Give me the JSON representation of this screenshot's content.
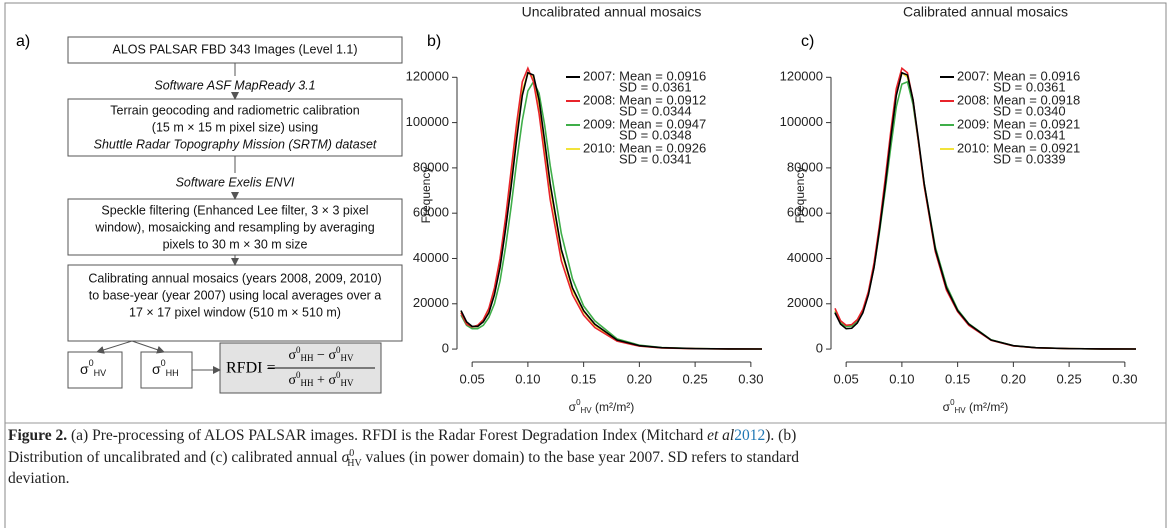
{
  "flowchart": {
    "panel_label": "a)",
    "boxes": [
      [
        "ALOS PALSAR FBD 343 Images (Level 1.1)"
      ],
      [
        "Terrain geocoding and radiometric calibration",
        "(15 m × 15 m pixel size) using",
        "Shuttle Radar Topography Mission (SRTM) dataset"
      ],
      [
        "Speckle filtering (Enhanced Lee filter, 3 × 3 pixel",
        "window), mosaicking and resampling by averaging",
        "pixels to 30 m × 30 m size"
      ],
      [
        "Calibrating annual mosaics (years 2008, 2009, 2010)",
        "to base-year (year 2007) using local averages over a",
        "17 × 17 pixel window (510 m × 510 m)"
      ]
    ],
    "software": [
      "Software ASF MapReady 3.1",
      "Software Exelis ENVI"
    ],
    "hv": [
      "σ",
      "0",
      "HV"
    ],
    "hh": [
      "σ",
      "0",
      "HH"
    ],
    "rfdi": {
      "lhs": "RFDI =",
      "num": [
        "σ",
        "0",
        "HH",
        " − ",
        "σ",
        "0",
        "HV"
      ],
      "den": [
        "σ",
        "0",
        "HH",
        " + ",
        "σ",
        "0",
        "HV"
      ]
    }
  },
  "chart_data": [
    {
      "type": "line",
      "panel_label": "b)",
      "title": "Uncalibrated annual mosaics",
      "ylabel": "Frequency",
      "xlabel": [
        "σ",
        "0",
        "HV",
        " (m²/m²)"
      ],
      "x": [
        0.04,
        0.045,
        0.05,
        0.055,
        0.06,
        0.065,
        0.07,
        0.075,
        0.08,
        0.085,
        0.09,
        0.095,
        0.1,
        0.105,
        0.11,
        0.115,
        0.12,
        0.13,
        0.14,
        0.15,
        0.16,
        0.18,
        0.2,
        0.22,
        0.25,
        0.28,
        0.31
      ],
      "xlim": [
        0.04,
        0.31
      ],
      "xticks": [
        0.05,
        {
          "value": 0.1,
          "label": "0.10"
        },
        0.15,
        {
          "value": 0.2,
          "label": "0.20"
        },
        0.25,
        {
          "value": 0.3,
          "label": "0.30"
        }
      ],
      "ylim": [
        -3500,
        140000
      ],
      "yticks": [
        0,
        20000,
        40000,
        60000,
        80000,
        100000,
        120000
      ],
      "series": [
        {
          "name": "2007: Mean = 0.0916",
          "sd": "SD = 0.0361",
          "color": "#000000",
          "values": [
            17000,
            12000,
            10000,
            10000,
            12000,
            16000,
            24000,
            36000,
            53000,
            72000,
            93000,
            112000,
            122000,
            121000,
            110000,
            92000,
            73000,
            44000,
            27000,
            17000,
            11000,
            4000,
            1500,
            600,
            200,
            80,
            30
          ]
        },
        {
          "name": "2008: Mean = 0.0912",
          "sd": "SD = 0.0344",
          "color": "#e8242b",
          "values": [
            16000,
            11000,
            9800,
            10500,
            13000,
            18000,
            27000,
            40000,
            58000,
            79000,
            100000,
            118000,
            124000,
            118000,
            104000,
            85000,
            66000,
            39000,
            24000,
            15000,
            9500,
            3500,
            1300,
            500,
            180,
            70,
            30
          ]
        },
        {
          "name": "2009: Mean = 0.0947",
          "sd": "SD = 0.0348",
          "color": "#3fae49",
          "values": [
            15000,
            10500,
            9000,
            9000,
            10500,
            14000,
            20000,
            30000,
            45000,
            63000,
            83000,
            101000,
            114000,
            118000,
            113000,
            99000,
            81000,
            51000,
            31000,
            19000,
            12500,
            4500,
            1700,
            700,
            250,
            90,
            30
          ]
        },
        {
          "name": "2010: Mean = 0.0926",
          "sd": "SD = 0.0341",
          "color": "#f2e33a",
          "values": [
            16500,
            11500,
            9800,
            10000,
            12200,
            16500,
            25000,
            37000,
            54000,
            74000,
            95000,
            114000,
            122000,
            120000,
            108000,
            90000,
            71000,
            43000,
            26000,
            16500,
            10500,
            3900,
            1400,
            550,
            200,
            80,
            30
          ]
        }
      ]
    },
    {
      "type": "line",
      "panel_label": "c)",
      "title": "Calibrated annual mosaics",
      "ylabel": "Frequency",
      "xlabel": [
        "σ",
        "0",
        "HV",
        " (m²/m²)"
      ],
      "x": [
        0.04,
        0.045,
        0.05,
        0.055,
        0.06,
        0.065,
        0.07,
        0.075,
        0.08,
        0.085,
        0.09,
        0.095,
        0.1,
        0.105,
        0.11,
        0.115,
        0.12,
        0.13,
        0.14,
        0.15,
        0.16,
        0.18,
        0.2,
        0.22,
        0.25,
        0.28,
        0.31
      ],
      "xlim": [
        0.04,
        0.31
      ],
      "xticks": [
        0.05,
        {
          "value": 0.1,
          "label": "0.10"
        },
        0.15,
        {
          "value": 0.2,
          "label": "0.20"
        },
        0.25,
        {
          "value": 0.3,
          "label": "0.30"
        }
      ],
      "ylim": [
        -3500,
        140000
      ],
      "yticks": [
        0,
        20000,
        40000,
        60000,
        80000,
        100000,
        120000
      ],
      "series": [
        {
          "name": "2007: Mean = 0.0916",
          "sd": "SD = 0.0361",
          "color": "#000000",
          "values": [
            16000,
            11000,
            9000,
            9200,
            11500,
            16000,
            24000,
            36000,
            53000,
            72000,
            93000,
            112000,
            122000,
            121000,
            110000,
            92000,
            73000,
            44000,
            27000,
            17000,
            11000,
            4000,
            1500,
            600,
            200,
            80,
            30
          ]
        },
        {
          "name": "2008: Mean = 0.0918",
          "sd": "SD = 0.0340",
          "color": "#e8242b",
          "values": [
            18000,
            12500,
            10500,
            10800,
            13000,
            17500,
            25500,
            38000,
            55000,
            75000,
            96000,
            115000,
            124000,
            122000,
            110000,
            91000,
            72000,
            43000,
            26000,
            16500,
            10500,
            3900,
            1400,
            550,
            200,
            80,
            30
          ]
        },
        {
          "name": "2009: Mean = 0.0921",
          "sd": "SD = 0.0341",
          "color": "#3fae49",
          "values": [
            16500,
            11500,
            10000,
            10200,
            12300,
            16500,
            24500,
            36000,
            52000,
            70000,
            89000,
            107000,
            117000,
            118000,
            108000,
            91000,
            73000,
            45000,
            28000,
            17500,
            11200,
            4100,
            1500,
            600,
            200,
            80,
            30
          ]
        },
        {
          "name": "2010: Mean = 0.0921",
          "sd": "SD = 0.0339",
          "color": "#f2e33a",
          "values": [
            17000,
            12000,
            10000,
            10200,
            12500,
            17000,
            25000,
            37000,
            54000,
            73000,
            94000,
            113000,
            122000,
            120000,
            109000,
            91000,
            72000,
            43500,
            26500,
            16800,
            10800,
            4000,
            1450,
            580,
            200,
            80,
            30
          ]
        }
      ]
    }
  ],
  "caption": {
    "label": "Figure 2.",
    "lines": [
      [
        " (a) Pre-processing of ALOS PALSAR images. RFDI is the Radar Forest Degradation Index (Mitchard ",
        "et al",
        "2012",
        "). (b)"
      ],
      [
        "Distribution of uncalibrated and (c) calibrated annual ",
        "σ",
        "0",
        "HV",
        " values (in power domain) to the base year 2007. SD refers to standard"
      ],
      [
        "deviation."
      ]
    ]
  }
}
